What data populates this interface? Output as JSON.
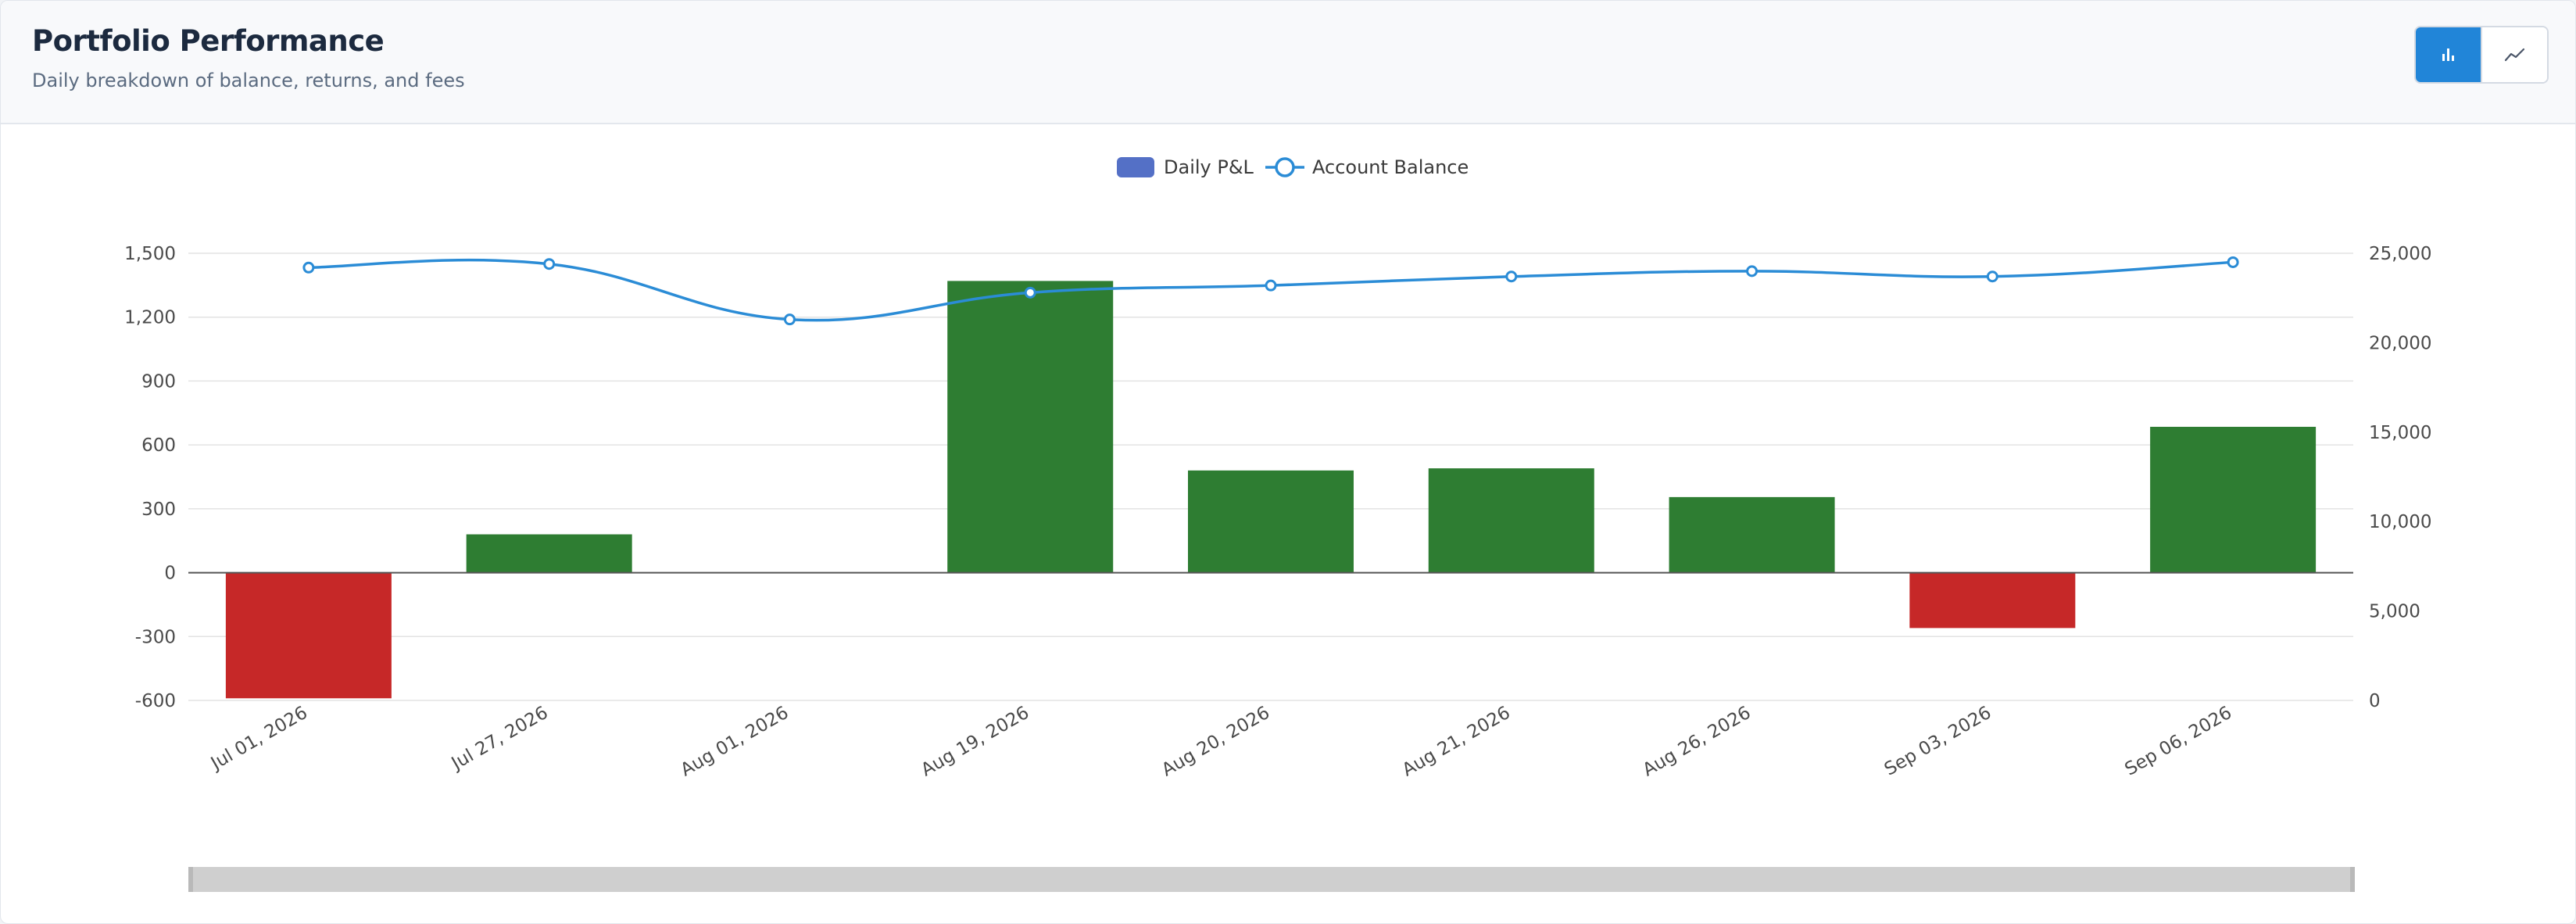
{
  "header": {
    "title": "Portfolio Performance",
    "subtitle": "Daily breakdown of balance, returns, and fees"
  },
  "toggle": {
    "active_icon": "bar-chart-icon",
    "inactive_icon": "line-chart-icon"
  },
  "colors": {
    "positive": "#2e7d32",
    "negative": "#c62828",
    "balance_line": "#2b8cd6",
    "legend_pnl": "#5470c6",
    "accent": "#2185d8"
  },
  "chart_data": {
    "type": "bar",
    "categories": [
      "Jul 01, 2026",
      "Jul 27, 2026",
      "Aug 01, 2026",
      "Aug 19, 2026",
      "Aug 20, 2026",
      "Aug 21, 2026",
      "Aug 26, 2026",
      "Sep 03, 2026",
      "Sep 06, 2026"
    ],
    "series": [
      {
        "name": "Daily P&L",
        "type": "bar",
        "axis": "left",
        "values": [
          -590,
          180,
          0,
          1370,
          480,
          490,
          355,
          -260,
          685
        ]
      },
      {
        "name": "Account Balance",
        "type": "line",
        "axis": "right",
        "values": [
          24200,
          24400,
          21300,
          22800,
          23200,
          23700,
          24000,
          23700,
          24500
        ]
      }
    ],
    "y_left": {
      "min": -600,
      "max": 1500,
      "ticks": [
        "1,500",
        "1,200",
        "900",
        "600",
        "300",
        "0",
        "-300",
        "-600"
      ]
    },
    "y_right": {
      "min": 0,
      "max": 25000,
      "ticks": [
        "25,000",
        "20,000",
        "15,000",
        "10,000",
        "5,000",
        "0"
      ]
    },
    "legend_position": "top-center",
    "grid": true
  }
}
